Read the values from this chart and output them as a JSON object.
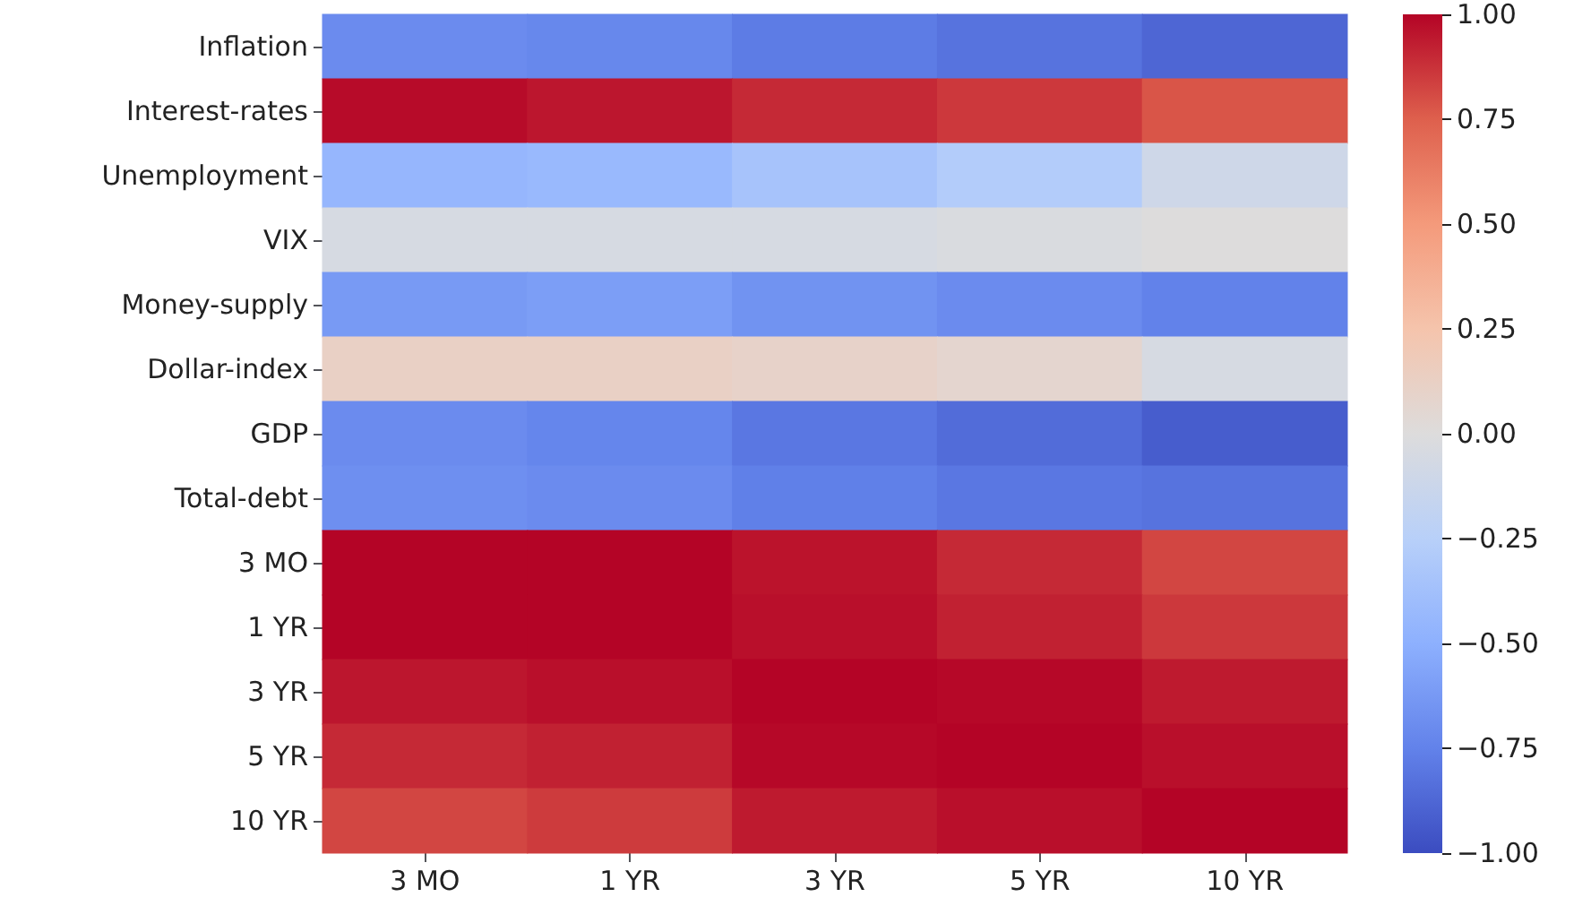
{
  "chart_data": {
    "type": "heatmap",
    "categories": [
      "3 MO",
      "1 YR",
      "3 YR",
      "5 YR",
      "10 YR"
    ],
    "y_categories": [
      "Inflation",
      "Interest-rates",
      "Unemployment",
      "VIX",
      "Money-supply",
      "Dollar-index",
      "GDP",
      "Total-debt",
      "3 MO",
      "1 YR",
      "3 YR",
      "5 YR",
      "10 YR"
    ],
    "cells": [
      [
        -0.7,
        -0.72,
        -0.78,
        -0.82,
        -0.88
      ],
      [
        0.98,
        0.95,
        0.9,
        0.86,
        0.78
      ],
      [
        -0.45,
        -0.43,
        -0.35,
        -0.28,
        -0.1
      ],
      [
        -0.05,
        -0.05,
        -0.05,
        -0.03,
        0.0
      ],
      [
        -0.62,
        -0.6,
        -0.66,
        -0.7,
        -0.75
      ],
      [
        0.12,
        0.12,
        0.1,
        0.07,
        -0.05
      ],
      [
        -0.7,
        -0.73,
        -0.8,
        -0.85,
        -0.92
      ],
      [
        -0.68,
        -0.7,
        -0.76,
        -0.8,
        -0.82
      ],
      [
        1.0,
        1.0,
        0.96,
        0.9,
        0.82
      ],
      [
        1.0,
        1.0,
        0.97,
        0.92,
        0.86
      ],
      [
        0.95,
        0.97,
        1.0,
        0.99,
        0.94
      ],
      [
        0.9,
        0.92,
        0.99,
        1.0,
        0.97
      ],
      [
        0.82,
        0.85,
        0.94,
        0.97,
        1.0
      ]
    ],
    "clim": [
      -1,
      1
    ],
    "cticks": [
      {
        "value": -1,
        "label": "−1.00"
      },
      {
        "value": -0.75,
        "label": "−0.75"
      },
      {
        "value": -0.5,
        "label": "−0.50"
      },
      {
        "value": -0.25,
        "label": "−0.25"
      },
      {
        "value": 0,
        "label": "0.00"
      },
      {
        "value": 0.25,
        "label": "0.25"
      },
      {
        "value": 0.5,
        "label": "0.50"
      },
      {
        "value": 0.75,
        "label": "0.75"
      },
      {
        "value": 1,
        "label": "1.00"
      }
    ]
  }
}
